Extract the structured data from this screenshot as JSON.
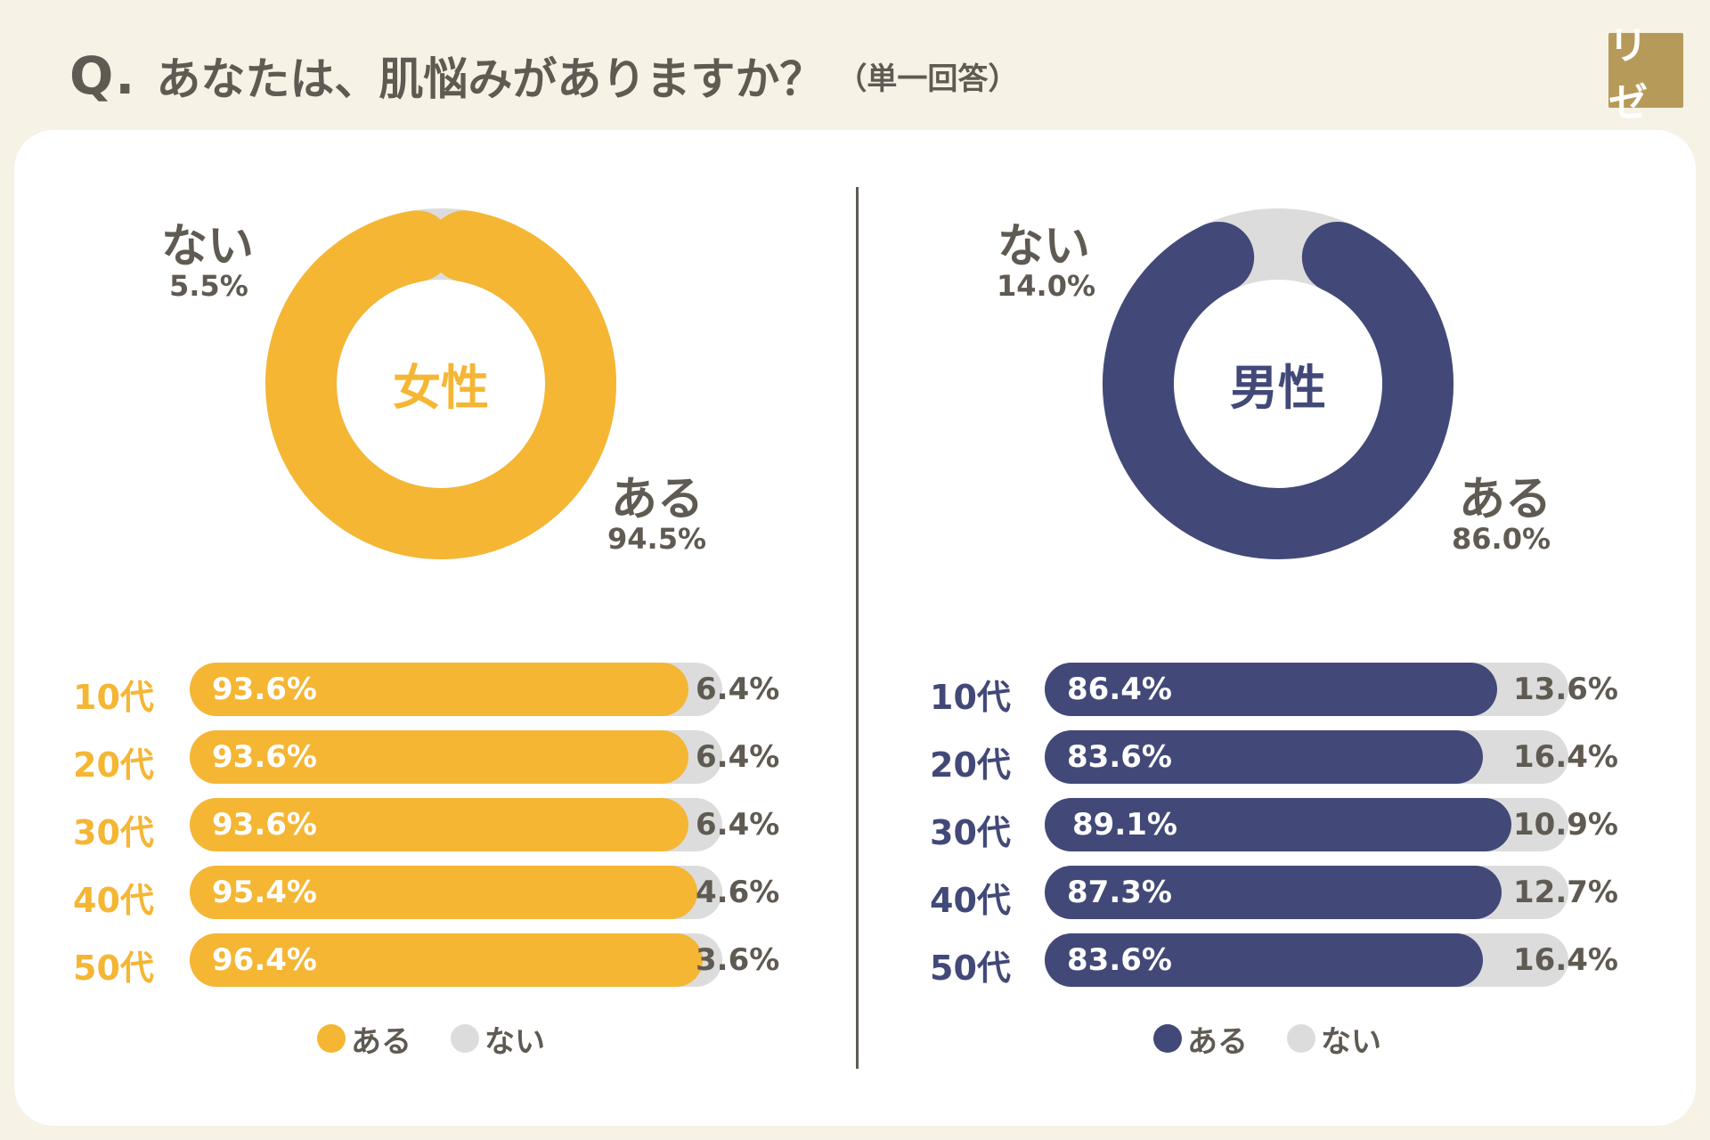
{
  "header": {
    "q_mark": "Q.",
    "question": "あなたは、肌悩みがありますか？",
    "note": "（単一回答）"
  },
  "logo": {
    "text": "リゼ"
  },
  "colors": {
    "female": "#f5b634",
    "male": "#424978",
    "none": "#dcdcdc",
    "text": "#5f5a52",
    "header_bg": "#f6f2e6",
    "logo": "#b69a59"
  },
  "chart_data": [
    {
      "type": "pie",
      "title": "女性",
      "slices": [
        {
          "label": "ある",
          "value": 94.5,
          "display": "94.5%"
        },
        {
          "label": "ない",
          "value": 5.5,
          "display": "5.5%"
        }
      ]
    },
    {
      "type": "pie",
      "title": "男性",
      "slices": [
        {
          "label": "ある",
          "value": 86.0,
          "display": "86.0%"
        },
        {
          "label": "ない",
          "value": 14.0,
          "display": "14.0%"
        }
      ]
    },
    {
      "type": "bar",
      "orientation": "horizontal",
      "stacked": true,
      "group": "女性",
      "categories": [
        "10代",
        "20代",
        "30代",
        "40代",
        "50代"
      ],
      "series": [
        {
          "name": "ある",
          "values": [
            93.6,
            93.6,
            93.6,
            95.4,
            96.4
          ],
          "labels": [
            "93.6%",
            "93.6%",
            "93.6%",
            "95.4%",
            "96.4%"
          ]
        },
        {
          "name": "ない",
          "values": [
            6.4,
            6.4,
            6.4,
            4.6,
            3.6
          ],
          "labels": [
            "6.4%",
            "6.4%",
            "6.4%",
            "4.6%",
            "3.6%"
          ]
        }
      ],
      "legend": [
        "ある",
        "ない"
      ]
    },
    {
      "type": "bar",
      "orientation": "horizontal",
      "stacked": true,
      "group": "男性",
      "categories": [
        "10代",
        "20代",
        "30代",
        "40代",
        "50代"
      ],
      "series": [
        {
          "name": "ある",
          "values": [
            86.4,
            83.6,
            89.1,
            87.3,
            83.6
          ],
          "labels": [
            "86.4%",
            "83.6%",
            "89.1%",
            "87.3%",
            "83.6%"
          ]
        },
        {
          "name": "ない",
          "values": [
            13.6,
            16.4,
            10.9,
            12.7,
            16.4
          ],
          "labels": [
            "13.6%",
            "16.4%",
            "10.9%",
            "12.7%",
            "16.4%"
          ]
        }
      ],
      "legend": [
        "ある",
        "ない"
      ]
    }
  ]
}
